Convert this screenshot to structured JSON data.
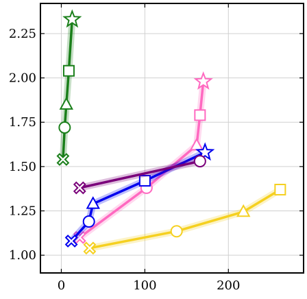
{
  "chart_data": {
    "type": "line",
    "title": "",
    "xlabel": "",
    "ylabel": "",
    "xlim": [
      -25,
      290
    ],
    "ylim": [
      0.9,
      2.42
    ],
    "x_ticks": [
      0,
      100,
      200
    ],
    "y_ticks": [
      1.0,
      1.25,
      1.5,
      1.75,
      2.0,
      2.25
    ],
    "x_tick_labels": [
      "0",
      "100",
      "200"
    ],
    "y_tick_labels": [
      "1.00",
      "1.25",
      "1.50",
      "1.75",
      "2.00",
      "2.25"
    ],
    "grid": true,
    "legend": "none",
    "series": [
      {
        "color": "#1a7f1a",
        "points": [
          {
            "x": 2,
            "y": 1.54,
            "marker": "x"
          },
          {
            "x": 4,
            "y": 1.72,
            "marker": "circle"
          },
          {
            "x": 6,
            "y": 1.85,
            "marker": "triangle"
          },
          {
            "x": 9,
            "y": 2.04,
            "marker": "square"
          },
          {
            "x": 13,
            "y": 2.33,
            "marker": "star"
          }
        ]
      },
      {
        "color": "#ff69c0",
        "points": [
          {
            "x": 22,
            "y": 1.1,
            "marker": "x"
          },
          {
            "x": 102,
            "y": 1.38,
            "marker": "circle"
          },
          {
            "x": 162,
            "y": 1.62,
            "marker": "triangle"
          },
          {
            "x": 166,
            "y": 1.79,
            "marker": "square"
          },
          {
            "x": 170,
            "y": 1.98,
            "marker": "star"
          }
        ]
      },
      {
        "color": "#0000ee",
        "points": [
          {
            "x": 12,
            "y": 1.08,
            "marker": "x"
          },
          {
            "x": 33,
            "y": 1.19,
            "marker": "circle"
          },
          {
            "x": 38,
            "y": 1.29,
            "marker": "triangle"
          },
          {
            "x": 100,
            "y": 1.42,
            "marker": "square"
          },
          {
            "x": 172,
            "y": 1.58,
            "marker": "star"
          }
        ]
      },
      {
        "color": "#7a007a",
        "points": [
          {
            "x": 22,
            "y": 1.38,
            "marker": "x"
          },
          {
            "x": 166,
            "y": 1.53,
            "marker": "circle"
          }
        ]
      },
      {
        "color": "#f5d020",
        "points": [
          {
            "x": 34,
            "y": 1.04,
            "marker": "x"
          },
          {
            "x": 138,
            "y": 1.135,
            "marker": "circle"
          },
          {
            "x": 218,
            "y": 1.245,
            "marker": "triangle"
          },
          {
            "x": 262,
            "y": 1.37,
            "marker": "square"
          }
        ]
      }
    ]
  }
}
